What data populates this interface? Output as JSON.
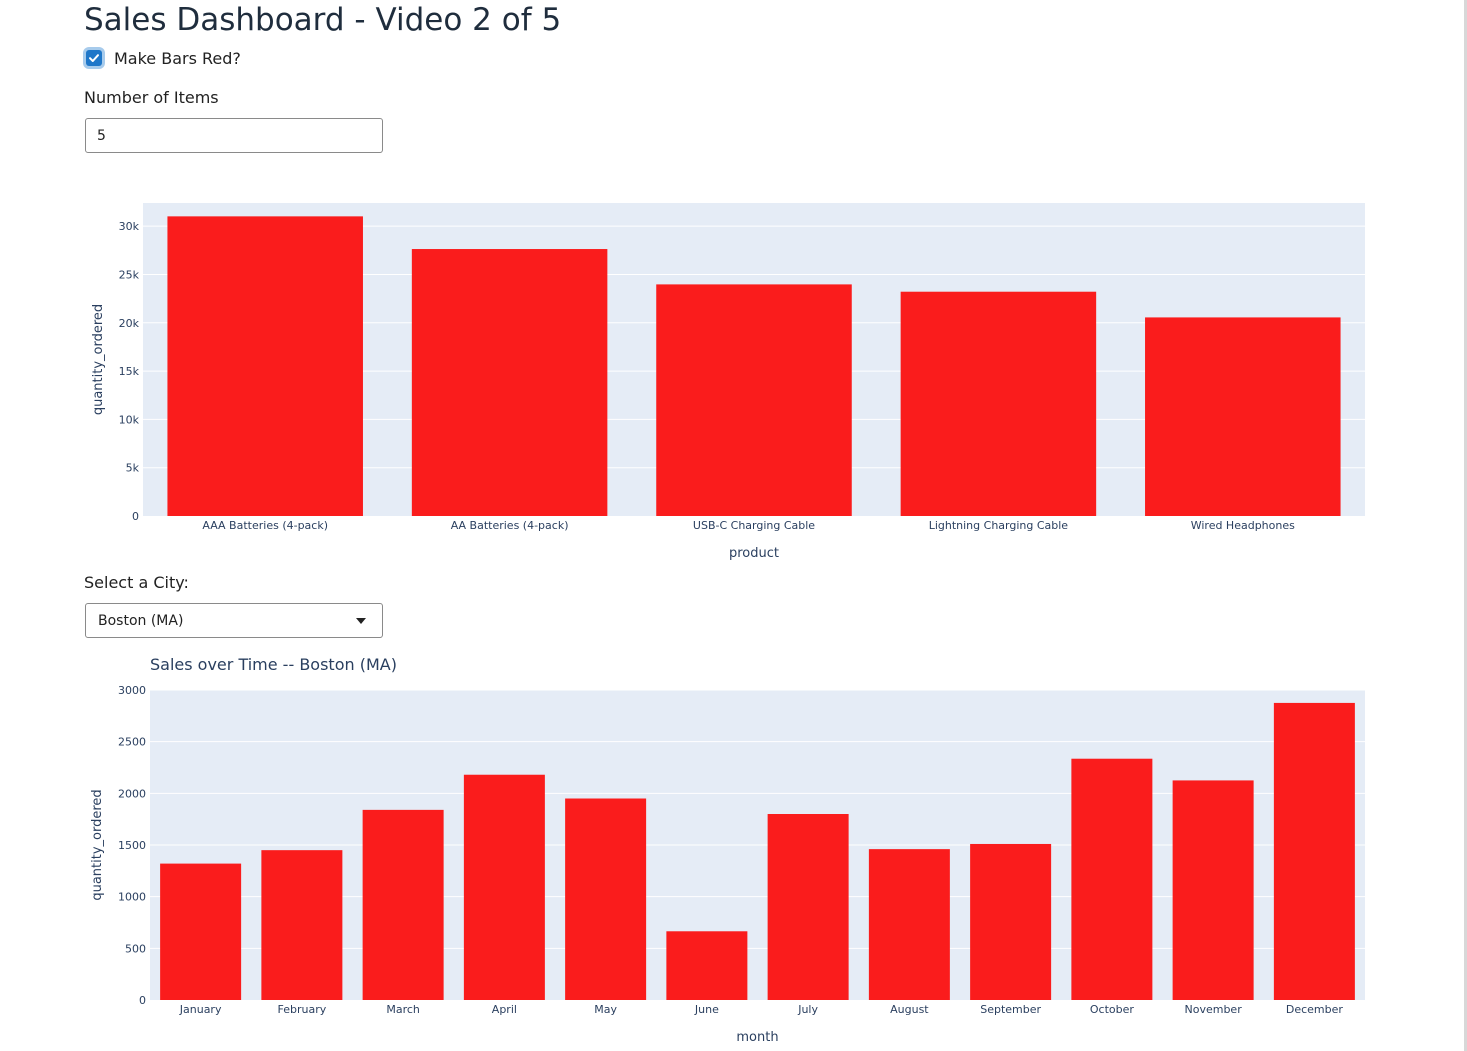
{
  "page": {
    "title": "Sales Dashboard - Video 2 of 5"
  },
  "controls": {
    "red_checkbox": {
      "label": "Make Bars Red?",
      "checked": true
    },
    "items": {
      "label": "Number of Items",
      "value": "5"
    },
    "city": {
      "label": "Select a City:",
      "value": "Boston (MA)"
    }
  },
  "colors": {
    "bar": "#fa1c1c",
    "plot_bg": "#e5ecf6",
    "accent": "#1f77c9"
  },
  "chart_data": [
    {
      "type": "bar",
      "title": "",
      "xlabel": "product",
      "ylabel": "quantity_ordered",
      "categories": [
        "AAA Batteries (4-pack)",
        "AA Batteries (4-pack)",
        "USB-C Charging Cable",
        "Lightning Charging Cable",
        "Wired Headphones"
      ],
      "values": [
        31017,
        27635,
        23975,
        23217,
        20557
      ],
      "ylim": [
        0,
        32400
      ],
      "yticks": [
        0,
        5000,
        10000,
        15000,
        20000,
        25000,
        30000
      ],
      "ytick_labels": [
        "0",
        "5k",
        "10k",
        "15k",
        "20k",
        "25k",
        "30k"
      ],
      "grid": true
    },
    {
      "type": "bar",
      "title": "Sales over Time -- Boston (MA)",
      "xlabel": "month",
      "ylabel": "quantity_ordered",
      "categories": [
        "January",
        "February",
        "March",
        "April",
        "May",
        "June",
        "July",
        "August",
        "September",
        "October",
        "November",
        "December"
      ],
      "values": [
        1320,
        1450,
        1840,
        2180,
        1950,
        665,
        1800,
        1460,
        1510,
        2335,
        2125,
        2875
      ],
      "ylim": [
        0,
        3000
      ],
      "yticks": [
        0,
        500,
        1000,
        1500,
        2000,
        2500,
        3000
      ],
      "ytick_labels": [
        "0",
        "500",
        "1000",
        "1500",
        "2000",
        "2500",
        "3000"
      ],
      "grid": true
    }
  ]
}
